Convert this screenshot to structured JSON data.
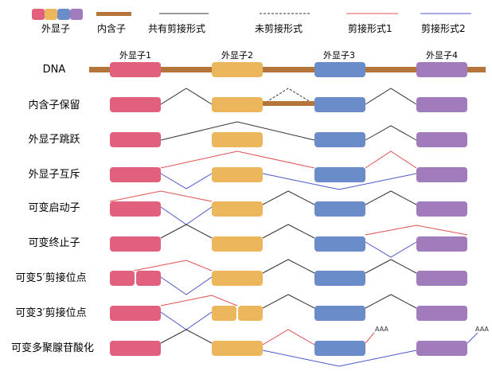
{
  "legend": {
    "exon": "外显子",
    "intron": "内含子",
    "shared": "共有剪接形式",
    "unspliced": "未剪接形式",
    "isoform1": "剪接形式1",
    "isoform2": "剪接形式2"
  },
  "colors": {
    "exon1": "#e0607e",
    "exon2": "#ecb65c",
    "exon3": "#6a8cc8",
    "exon4": "#a07cbc",
    "intron": "#b5753a",
    "shared": "#333333",
    "isoform1": "#e05050",
    "isoform2": "#4a56c8"
  },
  "exon_labels": [
    "外显子1",
    "外显子2",
    "外显子3",
    "外显子4"
  ],
  "rows": [
    {
      "id": "dna",
      "label": "DNA"
    },
    {
      "id": "intron_retention",
      "label": "内含子保留"
    },
    {
      "id": "exon_skipping",
      "label": "外显子跳跃"
    },
    {
      "id": "mutually_exclusive",
      "label": "外显子互斥"
    },
    {
      "id": "alt_promoter",
      "label": "可变启动子"
    },
    {
      "id": "alt_terminator",
      "label": "可变终止子"
    },
    {
      "id": "alt_5ss",
      "label": "可变5′剪接位点"
    },
    {
      "id": "alt_3ss",
      "label": "可变3′剪接位点"
    },
    {
      "id": "alt_polya",
      "label": "可变多聚腺苷酸化"
    }
  ],
  "polya_label": "AAA"
}
